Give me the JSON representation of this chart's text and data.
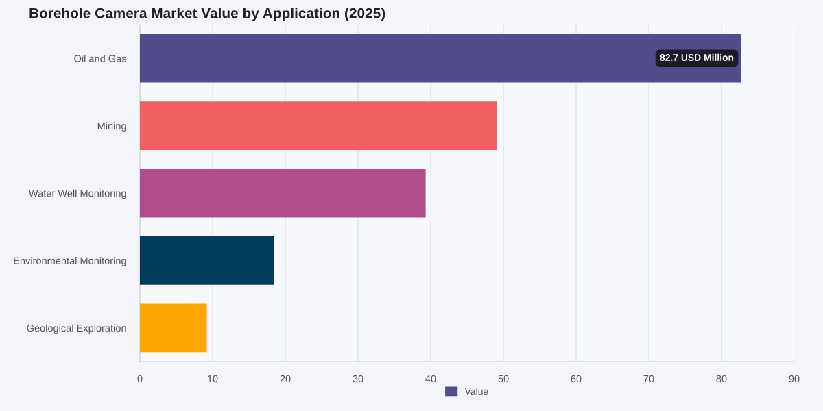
{
  "chart_data": {
    "type": "bar",
    "orientation": "horizontal",
    "title": "Borehole Camera Market Value by Application (2025)",
    "categories": [
      "Oil and Gas",
      "Mining",
      "Water Well Monitoring",
      "Environmental Monitoring",
      "Geological Exploration"
    ],
    "series": [
      {
        "name": "Value",
        "color": "#534c8a",
        "colors": [
          "#534c8a",
          "#f25f62",
          "#b14d8b",
          "#023c5a",
          "#fea500"
        ],
        "values": [
          82.7,
          49.1,
          39.3,
          18.4,
          9.2
        ],
        "value_labels": [
          "82.7 USD Million",
          null,
          null,
          null,
          null
        ]
      }
    ],
    "xlim": [
      0,
      90
    ],
    "xticks": [
      0,
      10,
      20,
      30,
      40,
      50,
      60,
      70,
      80,
      90
    ],
    "grid": "x",
    "legend": "bottom"
  }
}
